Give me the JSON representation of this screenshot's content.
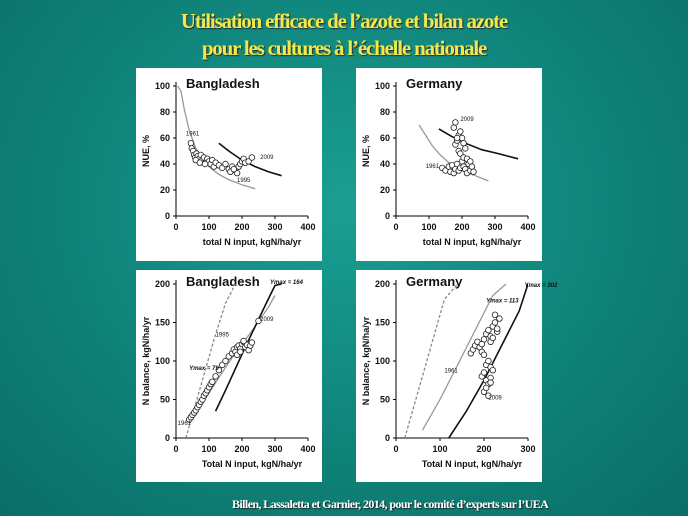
{
  "slide": {
    "title_line1": "Utilisation efficace de l’azote et bilan azote",
    "title_line2": "pour les cultures à l’échelle nationale",
    "footer": "Billen, Lassaletta et Garnier, 2014, pour le comité d’experts sur l’UEA"
  },
  "chart_data": [
    {
      "type": "scatter",
      "title": "Bangladesh",
      "xlabel": "total N input, kgN/ha/yr",
      "ylabel": "NUE, %",
      "xlim": [
        0,
        400
      ],
      "ylim": [
        0,
        100
      ],
      "xticks": [
        "0",
        "100",
        "200",
        "300",
        "400"
      ],
      "yticks": [
        "0",
        "20",
        "40",
        "60",
        "80",
        "100"
      ],
      "annotations": [
        {
          "text": "1961",
          "x": 30,
          "y": 62
        },
        {
          "text": "1995",
          "x": 185,
          "y": 26
        },
        {
          "text": "2009",
          "x": 255,
          "y": 44
        }
      ],
      "points": {
        "x": [
          45,
          48,
          52,
          55,
          58,
          62,
          66,
          70,
          75,
          80,
          85,
          90,
          95,
          100,
          105,
          110,
          115,
          120,
          130,
          140,
          150,
          160,
          170,
          180,
          185,
          190,
          195,
          200,
          205,
          210,
          220,
          230,
          60,
          72,
          88,
          165,
          175
        ],
        "y": [
          56,
          52,
          50,
          47,
          45,
          48,
          46,
          44,
          47,
          43,
          45,
          41,
          44,
          42,
          40,
          43,
          38,
          41,
          39,
          37,
          40,
          36,
          38,
          35,
          33,
          38,
          40,
          42,
          44,
          41,
          42,
          45,
          43,
          41,
          40,
          34,
          36
        ]
      },
      "curves": [
        {
          "color": "#999999",
          "x": [
            5,
            15,
            25,
            40,
            60,
            80,
            100,
            130,
            160,
            200,
            240
          ],
          "y": [
            100,
            96,
            82,
            66,
            52,
            44,
            38,
            32,
            28,
            24,
            21
          ]
        },
        {
          "color": "#111111",
          "x": [
            130,
            160,
            200,
            240,
            280,
            320
          ],
          "y": [
            56,
            50,
            43,
            38,
            34,
            31
          ]
        }
      ]
    },
    {
      "type": "scatter",
      "title": "Germany",
      "xlabel": "total N input, kgN/ha/yr",
      "ylabel": "NUE, %",
      "xlim": [
        0,
        400
      ],
      "ylim": [
        0,
        100
      ],
      "xticks": [
        "0",
        "100",
        "200",
        "300",
        "400"
      ],
      "yticks": [
        "0",
        "20",
        "40",
        "60",
        "80",
        "100"
      ],
      "annotations": [
        {
          "text": "2009",
          "x": 195,
          "y": 73
        },
        {
          "text": "1961",
          "x": 90,
          "y": 37
        }
      ],
      "points": {
        "x": [
          140,
          150,
          160,
          165,
          170,
          175,
          180,
          185,
          190,
          195,
          200,
          205,
          210,
          215,
          220,
          225,
          230,
          235,
          180,
          185,
          190,
          195,
          200,
          205,
          210,
          175,
          180,
          185,
          190,
          195,
          205,
          215,
          225
        ],
        "y": [
          37,
          35,
          38,
          34,
          39,
          33,
          36,
          40,
          35,
          37,
          42,
          38,
          36,
          33,
          40,
          35,
          38,
          34,
          55,
          58,
          62,
          65,
          60,
          56,
          52,
          68,
          72,
          60,
          50,
          48,
          45,
          44,
          42
        ]
      },
      "curves": [
        {
          "color": "#999999",
          "x": [
            70,
            90,
            110,
            130,
            160,
            200,
            240,
            280
          ],
          "y": [
            70,
            62,
            54,
            48,
            41,
            35,
            31,
            27
          ]
        },
        {
          "color": "#111111",
          "x": [
            130,
            170,
            210,
            260,
            310,
            370
          ],
          "y": [
            67,
            61,
            56,
            51,
            48,
            44
          ]
        }
      ]
    },
    {
      "type": "scatter",
      "title": "Bangladesh",
      "xlabel": "Total N input, kgN/ha/yr",
      "ylabel": "N balance, kgN/ha/yr",
      "xlim": [
        0,
        400
      ],
      "ylim": [
        0,
        200
      ],
      "xticks": [
        "0",
        "100",
        "200",
        "300",
        "400"
      ],
      "yticks": [
        "0",
        "50",
        "100",
        "150",
        "200"
      ],
      "annotations": [
        {
          "text": "1961",
          "x": 5,
          "y": 17
        },
        {
          "text": "1995",
          "x": 120,
          "y": 132
        },
        {
          "text": "2009",
          "x": 255,
          "y": 152
        },
        {
          "text": "Ymax = 79",
          "x": 40,
          "y": 88
        },
        {
          "text": "Ymax = 164",
          "x": 285,
          "y": 200
        }
      ],
      "points": {
        "x": [
          40,
          45,
          50,
          55,
          60,
          65,
          70,
          75,
          80,
          85,
          90,
          95,
          100,
          105,
          110,
          120,
          130,
          140,
          150,
          160,
          170,
          175,
          180,
          185,
          190,
          195,
          200,
          205,
          210,
          215,
          220,
          225,
          230,
          250,
          185,
          195,
          205
        ],
        "y": [
          24,
          27,
          30,
          33,
          36,
          40,
          43,
          47,
          50,
          55,
          58,
          62,
          66,
          70,
          73,
          80,
          88,
          95,
          100,
          106,
          110,
          115,
          112,
          118,
          120,
          116,
          122,
          125,
          118,
          121,
          114,
          120,
          124,
          152,
          108,
          112,
          126
        ]
      },
      "curves": [
        {
          "color": "#888888",
          "dash": true,
          "x": [
            30,
            60,
            90,
            120,
            150,
            180
          ],
          "y": [
            0,
            45,
            90,
            135,
            175,
            205
          ]
        },
        {
          "color": "#999999",
          "x": [
            40,
            80,
            120,
            160,
            200,
            240,
            280,
            300
          ],
          "y": [
            20,
            45,
            72,
            98,
            122,
            145,
            170,
            185
          ]
        },
        {
          "color": "#111111",
          "x": [
            120,
            150,
            180,
            210,
            240,
            270,
            300,
            320
          ],
          "y": [
            35,
            62,
            90,
            118,
            145,
            172,
            198,
            210
          ]
        }
      ]
    },
    {
      "type": "scatter",
      "title": "Germany",
      "xlabel": "Total N input, kgN/ha/yr",
      "ylabel": "N balance, kgN/ha/yr",
      "xlim": [
        0,
        300
      ],
      "ylim": [
        0,
        200
      ],
      "xticks": [
        "0",
        "100",
        "200",
        "300"
      ],
      "yticks": [
        "0",
        "50",
        "100",
        "150",
        "200"
      ],
      "annotations": [
        {
          "text": "1961",
          "x": 110,
          "y": 85
        },
        {
          "text": "2009",
          "x": 210,
          "y": 50
        },
        {
          "text": "Ymax = 113",
          "x": 205,
          "y": 176
        },
        {
          "text": "Ymax = 302",
          "x": 292,
          "y": 196
        }
      ],
      "points": {
        "x": [
          170,
          175,
          180,
          185,
          190,
          195,
          200,
          205,
          210,
          215,
          220,
          225,
          230,
          235,
          215,
          220,
          225,
          230,
          205,
          210,
          215,
          220,
          195,
          200,
          205,
          210,
          215,
          200,
          205,
          210,
          215,
          190,
          195,
          200
        ],
        "y": [
          110,
          115,
          120,
          125,
          118,
          112,
          128,
          135,
          140,
          132,
          145,
          150,
          138,
          155,
          125,
          130,
          160,
          142,
          95,
          100,
          92,
          88,
          80,
          85,
          75,
          70,
          78,
          60,
          65,
          55,
          72,
          118,
          122,
          108
        ]
      },
      "curves": [
        {
          "color": "#888888",
          "dash": true,
          "x": [
            20,
            50,
            80,
            110,
            140
          ],
          "y": [
            0,
            60,
            120,
            180,
            210
          ]
        },
        {
          "color": "#999999",
          "x": [
            60,
            100,
            140,
            180,
            220,
            250
          ],
          "y": [
            10,
            50,
            95,
            140,
            185,
            215
          ]
        },
        {
          "color": "#111111",
          "x": [
            120,
            160,
            200,
            240,
            280,
            310
          ],
          "y": [
            0,
            35,
            75,
            120,
            165,
            200
          ]
        }
      ]
    }
  ]
}
